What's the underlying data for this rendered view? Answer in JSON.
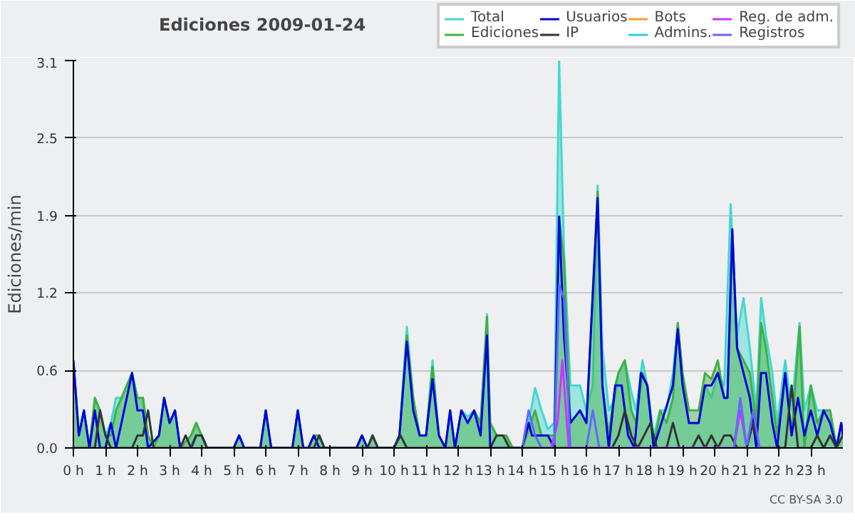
{
  "chart_data": {
    "type": "line",
    "title": "Ediciones  2009-01-24",
    "ylabel": "Ediciones/min",
    "xlim": [
      0,
      24
    ],
    "ylim": [
      0,
      3.1
    ],
    "xticks": [
      {
        "value": 0,
        "label": "0 h"
      },
      {
        "value": 1,
        "label": "1 h"
      },
      {
        "value": 2,
        "label": "2 h"
      },
      {
        "value": 3,
        "label": "3 h"
      },
      {
        "value": 4,
        "label": "4 h"
      },
      {
        "value": 5,
        "label": "5 h"
      },
      {
        "value": 6,
        "label": "6 h"
      },
      {
        "value": 7,
        "label": "7 h"
      },
      {
        "value": 8,
        "label": "8 h"
      },
      {
        "value": 9,
        "label": "9 h"
      },
      {
        "value": 10,
        "label": "10 h"
      },
      {
        "value": 11,
        "label": "11 h"
      },
      {
        "value": 12,
        "label": "12 h"
      },
      {
        "value": 13,
        "label": "13 h"
      },
      {
        "value": 14,
        "label": "14 h"
      },
      {
        "value": 15,
        "label": "15 h"
      },
      {
        "value": 16,
        "label": "16 h"
      },
      {
        "value": 17,
        "label": "17 h"
      },
      {
        "value": 18,
        "label": "18 h"
      },
      {
        "value": 19,
        "label": "19 h"
      },
      {
        "value": 20,
        "label": "20 h"
      },
      {
        "value": 21,
        "label": "21 h"
      },
      {
        "value": 22,
        "label": "22 h"
      },
      {
        "value": 23,
        "label": "23 h"
      }
    ],
    "yticks": [
      {
        "value": 0,
        "label": "0.0"
      },
      {
        "value": 0.62,
        "label": "0.6"
      },
      {
        "value": 1.24,
        "label": "1.2"
      },
      {
        "value": 1.86,
        "label": "1.9"
      },
      {
        "value": 2.48,
        "label": "2.5"
      },
      {
        "value": 3.1,
        "label": "3.1"
      }
    ],
    "grid": "y",
    "legend": "top right",
    "annotations": [
      "CC BY-SA 3.0"
    ],
    "series": [
      {
        "name": "Total",
        "type": "area",
        "color": "#40d8d0",
        "x": [
          0,
          0.17,
          0.33,
          0.5,
          0.67,
          0.83,
          1.0,
          1.17,
          1.33,
          1.5,
          1.83,
          2.0,
          2.17,
          2.33,
          2.5,
          2.67,
          2.83,
          3.0,
          3.17,
          3.33,
          3.67,
          3.83,
          4.0,
          4.17,
          5.0,
          5.17,
          5.33,
          5.83,
          6.0,
          6.17,
          6.83,
          7.0,
          7.17,
          7.33,
          7.5,
          7.67,
          7.83,
          8.83,
          9.0,
          9.17,
          9.33,
          9.5,
          10.0,
          10.17,
          10.4,
          10.6,
          10.8,
          11.0,
          11.2,
          11.4,
          11.6,
          11.75,
          11.9,
          12.1,
          12.3,
          12.5,
          12.7,
          12.9,
          13.0,
          13.2,
          13.5,
          13.7,
          14.0,
          14.2,
          14.4,
          14.6,
          14.8,
          15.0,
          15.15,
          15.3,
          15.5,
          15.8,
          16.0,
          16.2,
          16.35,
          16.5,
          16.7,
          16.9,
          17.0,
          17.2,
          17.4,
          17.55,
          17.75,
          17.9,
          18.1,
          18.3,
          18.5,
          18.7,
          18.85,
          19.0,
          19.2,
          19.5,
          19.7,
          19.9,
          20.1,
          20.3,
          20.5,
          20.7,
          20.9,
          21.1,
          21.3,
          21.45,
          21.6,
          21.8,
          21.95,
          22.2,
          22.4,
          22.65,
          22.8,
          23.0,
          23.2,
          23.4,
          23.6,
          23.8,
          23.95,
          24
        ],
        "values": [
          0.7,
          0.1,
          0.3,
          0,
          0.4,
          0.3,
          0.1,
          0.2,
          0.4,
          0.4,
          0.6,
          0.4,
          0.4,
          0.1,
          0,
          0.1,
          0.4,
          0.2,
          0.3,
          0,
          0.1,
          0.2,
          0.1,
          0,
          0,
          0.1,
          0,
          0,
          0.3,
          0,
          0,
          0.3,
          0,
          0,
          0.1,
          0.1,
          0,
          0,
          0.1,
          0,
          0.1,
          0,
          0,
          0.1,
          0.97,
          0.4,
          0.1,
          0.1,
          0.7,
          0.1,
          0,
          0.3,
          0,
          0.3,
          0.25,
          0.3,
          0.2,
          1.07,
          0.2,
          0.1,
          0.1,
          0,
          0,
          0.2,
          0.48,
          0.3,
          0.15,
          0.2,
          3.1,
          1.6,
          0.5,
          0.5,
          0.3,
          0.5,
          2.1,
          0.8,
          0.3,
          0.4,
          0.6,
          0.7,
          0.45,
          0.3,
          0.7,
          0.5,
          0.1,
          0.3,
          0.3,
          0.6,
          1.0,
          0.6,
          0.2,
          0.2,
          0.5,
          0.4,
          0.6,
          0.5,
          1.95,
          0.9,
          1.2,
          0.8,
          0.3,
          1.2,
          0.9,
          0.6,
          0.2,
          0.7,
          0.3,
          1.0,
          0.3,
          0.5,
          0.3,
          0.3,
          0.3,
          0,
          0.2,
          0.1
        ]
      },
      {
        "name": "Ediciones",
        "type": "area",
        "color": "#40b040",
        "x": [
          0,
          0.17,
          0.33,
          0.5,
          0.67,
          0.83,
          1.0,
          1.17,
          1.33,
          1.5,
          1.83,
          2.0,
          2.17,
          2.33,
          2.5,
          2.67,
          2.83,
          3.0,
          3.17,
          3.33,
          3.67,
          3.83,
          4.0,
          4.17,
          5.0,
          5.17,
          5.33,
          5.83,
          6.0,
          6.17,
          6.83,
          7.0,
          7.17,
          7.33,
          7.5,
          7.67,
          7.83,
          8.83,
          9.0,
          9.17,
          9.33,
          9.5,
          10.0,
          10.17,
          10.4,
          10.6,
          10.8,
          11.0,
          11.2,
          11.4,
          11.6,
          11.75,
          11.9,
          12.1,
          12.3,
          12.5,
          12.7,
          12.9,
          13.0,
          13.2,
          13.5,
          13.7,
          14.0,
          14.2,
          14.4,
          14.6,
          14.8,
          15.0,
          15.15,
          15.3,
          15.5,
          15.8,
          16.0,
          16.35,
          16.5,
          16.7,
          16.9,
          17.0,
          17.2,
          17.4,
          17.55,
          17.75,
          17.9,
          18.1,
          18.3,
          18.5,
          18.7,
          18.85,
          19.0,
          19.2,
          19.5,
          19.7,
          19.9,
          20.1,
          20.3,
          20.4,
          20.55,
          20.7,
          20.9,
          21.1,
          21.3,
          21.45,
          21.6,
          21.8,
          21.95,
          22.2,
          22.4,
          22.65,
          22.8,
          23.0,
          23.2,
          23.4,
          23.6,
          23.8,
          23.95,
          24
        ],
        "values": [
          0.7,
          0.1,
          0.3,
          0,
          0.4,
          0.3,
          0.1,
          0.1,
          0.3,
          0.4,
          0.6,
          0.4,
          0.4,
          0.1,
          0,
          0.1,
          0.4,
          0.2,
          0.3,
          0,
          0.1,
          0.2,
          0.1,
          0,
          0,
          0.1,
          0,
          0,
          0.3,
          0,
          0,
          0.3,
          0,
          0,
          0.1,
          0.1,
          0,
          0,
          0.1,
          0,
          0.1,
          0,
          0,
          0.1,
          0.9,
          0.4,
          0.1,
          0.1,
          0.65,
          0.1,
          0,
          0.3,
          0,
          0.3,
          0.2,
          0.3,
          0.2,
          1.05,
          0.2,
          0.1,
          0.1,
          0,
          0,
          0.15,
          0.3,
          0.1,
          0.1,
          0.1,
          1.85,
          1.5,
          0.2,
          0.3,
          0.2,
          2.05,
          0.5,
          0.1,
          0.5,
          0.6,
          0.7,
          0.3,
          0.2,
          0.6,
          0.5,
          0,
          0.3,
          0.2,
          0.4,
          1.0,
          0.6,
          0.3,
          0.3,
          0.6,
          0.55,
          0.7,
          0.4,
          0.4,
          1.75,
          0.8,
          0.7,
          0.6,
          0.2,
          1.0,
          0.8,
          0.4,
          0.1,
          0.6,
          0.1,
          0.97,
          0,
          0.5,
          0.2,
          0.3,
          0.3,
          0,
          0.2,
          0.1
        ]
      },
      {
        "name": "Usuarios",
        "color": "#0000dd",
        "x": [
          0,
          0.17,
          0.33,
          0.5,
          0.67,
          0.83,
          1.0,
          1.17,
          1.33,
          1.5,
          1.83,
          2.0,
          2.17,
          2.33,
          2.67,
          2.83,
          3.0,
          3.17,
          3.33,
          3.67,
          3.83,
          4.0,
          4.17,
          5.0,
          5.17,
          5.33,
          5.83,
          6.0,
          6.17,
          6.83,
          7.0,
          7.17,
          7.33,
          7.5,
          7.67,
          8.83,
          9.0,
          9.17,
          10.0,
          10.17,
          10.4,
          10.6,
          10.8,
          11.0,
          11.2,
          11.4,
          11.6,
          11.75,
          11.9,
          12.1,
          12.3,
          12.5,
          12.7,
          12.9,
          13.0,
          14.0,
          14.2,
          14.3,
          14.6,
          14.8,
          15.0,
          15.15,
          15.3,
          15.5,
          15.8,
          16.0,
          16.35,
          16.5,
          16.7,
          16.9,
          17.1,
          17.3,
          17.5,
          17.7,
          17.9,
          18.1,
          18.7,
          18.85,
          19.0,
          19.2,
          19.5,
          19.7,
          19.9,
          20.1,
          20.3,
          20.4,
          20.55,
          20.7,
          20.9,
          21.1,
          21.3,
          21.45,
          21.6,
          21.8,
          21.95,
          22.2,
          22.4,
          22.6,
          22.8,
          23.0,
          23.2,
          23.4,
          23.6,
          23.8,
          23.95,
          24
        ],
        "values": [
          0.7,
          0.1,
          0.3,
          0,
          0.3,
          0,
          0,
          0.2,
          0,
          0.2,
          0.6,
          0.3,
          0.3,
          0,
          0.1,
          0.4,
          0.2,
          0.3,
          0,
          0,
          0.1,
          0.1,
          0,
          0,
          0.1,
          0,
          0,
          0.3,
          0,
          0,
          0.3,
          0,
          0,
          0.1,
          0,
          0,
          0.1,
          0,
          0,
          0.1,
          0.85,
          0.3,
          0.1,
          0.1,
          0.55,
          0.1,
          0,
          0.3,
          0,
          0.3,
          0.2,
          0.3,
          0.1,
          0.9,
          0,
          0,
          0.2,
          0.1,
          0.1,
          0.1,
          0,
          1.85,
          0.9,
          0.2,
          0.3,
          0.2,
          2.0,
          0.5,
          0,
          0.5,
          0.5,
          0.1,
          0,
          0.6,
          0.5,
          0,
          0.5,
          0.95,
          0.5,
          0.2,
          0.2,
          0.5,
          0.5,
          0.6,
          0.4,
          0.4,
          1.75,
          0.8,
          0.6,
          0.4,
          0,
          0.6,
          0.6,
          0.2,
          0,
          0.6,
          0.1,
          0.4,
          0.1,
          0.3,
          0.1,
          0.3,
          0.2,
          0,
          0.2,
          0.1
        ]
      },
      {
        "name": "IP",
        "color": "#333333",
        "x": [
          0,
          0.67,
          0.83,
          1.0,
          1.17,
          1.5,
          1.83,
          2.0,
          2.17,
          2.33,
          2.5,
          3.33,
          3.5,
          3.67,
          3.83,
          4.0,
          4.17,
          7.5,
          7.67,
          7.83,
          9.17,
          9.33,
          9.5,
          10.0,
          10.2,
          10.4,
          13.0,
          13.2,
          13.4,
          13.6,
          16.8,
          17.0,
          17.2,
          17.4,
          17.6,
          18.0,
          18.2,
          18.5,
          18.7,
          18.9,
          19.3,
          19.5,
          19.7,
          19.9,
          20.1,
          20.3,
          20.5,
          20.7,
          21.0,
          21.2,
          21.4,
          22.2,
          22.4,
          22.6,
          23.0,
          23.2,
          23.4,
          23.6,
          23.8,
          24
        ],
        "values": [
          0,
          0,
          0.3,
          0.1,
          0,
          0,
          0,
          0.1,
          0.1,
          0.3,
          0,
          0,
          0.1,
          0,
          0.1,
          0.1,
          0,
          0,
          0.1,
          0,
          0,
          0.1,
          0,
          0,
          0.1,
          0,
          0,
          0.1,
          0.1,
          0,
          0,
          0.1,
          0.3,
          0.1,
          0,
          0.2,
          0,
          0,
          0.2,
          0,
          0,
          0.1,
          0,
          0.1,
          0,
          0.1,
          0.1,
          0,
          0,
          0.2,
          0,
          0,
          0.5,
          0,
          0,
          0.1,
          0,
          0.1,
          0,
          0.1
        ]
      },
      {
        "name": "Bots",
        "color": "#ff9933"
      },
      {
        "name": "Admins.",
        "color": "#33ccdd"
      },
      {
        "name": "Reg. de adm.",
        "color": "#cc33ff",
        "x": [
          14.9,
          15.1,
          15.25,
          15.45,
          20.6,
          20.8,
          21.0
        ],
        "values": [
          0,
          0.2,
          0.7,
          0,
          0,
          0.3,
          0
        ]
      },
      {
        "name": "Registros",
        "color": "#6666ff",
        "x": [
          14.0,
          14.2,
          14.4,
          14.6,
          15.0,
          15.15,
          15.3,
          15.5,
          16.0,
          16.2,
          16.4,
          20.6,
          20.8,
          21.0,
          21.2,
          21.4
        ],
        "values": [
          0,
          0.3,
          0.1,
          0,
          0,
          1.3,
          1.2,
          0,
          0,
          0.3,
          0,
          0,
          0.4,
          0,
          0.3,
          0
        ]
      }
    ]
  }
}
